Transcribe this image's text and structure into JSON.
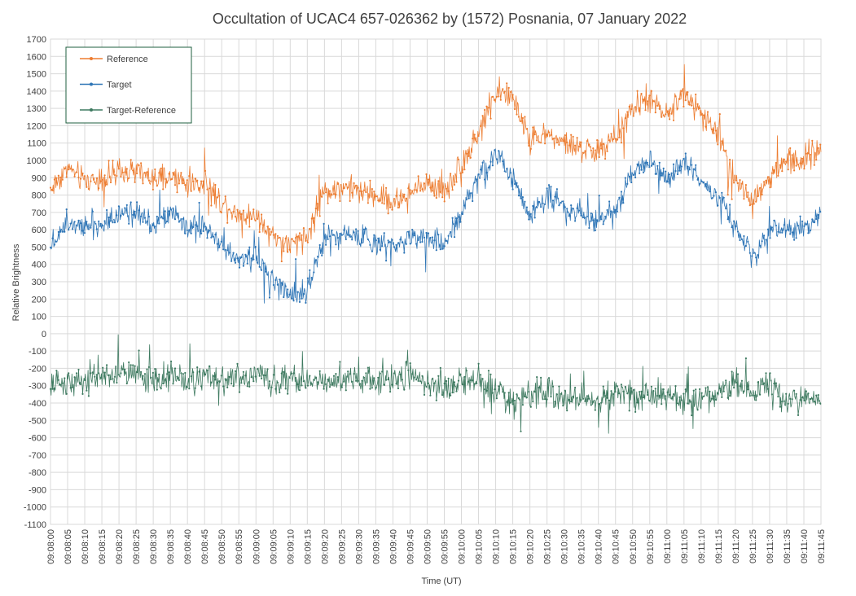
{
  "chart_data": {
    "type": "line",
    "title": "Occultation of UCAC4 657-026362 by (1572) Posnania, 07 January 2022",
    "xlabel": "Time (UT)",
    "ylabel": "Relative Brightness",
    "ylim": [
      -1100,
      1700
    ],
    "yticks": [
      1700,
      1600,
      1500,
      1400,
      1300,
      1200,
      1100,
      1000,
      900,
      800,
      700,
      600,
      500,
      400,
      300,
      200,
      100,
      0,
      -100,
      -200,
      -300,
      -400,
      -500,
      -600,
      -700,
      -800,
      -900,
      -1000,
      -1100
    ],
    "xticks": [
      "09:08:00",
      "09:08:05",
      "09:08:10",
      "09:08:15",
      "09:08:20",
      "09:08:25",
      "09:08:30",
      "09:08:35",
      "09:08:40",
      "09:08:45",
      "09:08:50",
      "09:08:55",
      "09:09:00",
      "09:09:05",
      "09:09:10",
      "09:09:15",
      "09:09:20",
      "09:09:25",
      "09:09:30",
      "09:09:35",
      "09:09:40",
      "09:09:45",
      "09:09:50",
      "09:09:55",
      "09:10:00",
      "09:10:05",
      "09:10:10",
      "09:10:15",
      "09:10:20",
      "09:10:25",
      "09:10:30",
      "09:10:35",
      "09:10:40",
      "09:10:45",
      "09:10:50",
      "09:10:55",
      "09:11:00",
      "09:11:05",
      "09:11:10",
      "09:11:15",
      "09:11:20",
      "09:11:25",
      "09:11:30",
      "09:11:35",
      "09:11:40",
      "09:11:45"
    ],
    "grid": true,
    "legend_position": "top-left",
    "series": [
      {
        "name": "Reference",
        "color": "#ED7D31",
        "time_unit": "seconds after 09:08:00",
        "x": [
          0,
          5,
          10,
          15,
          20,
          25,
          30,
          35,
          40,
          45,
          50,
          55,
          60,
          65,
          70,
          75,
          80,
          85,
          90,
          95,
          100,
          105,
          110,
          115,
          120,
          125,
          130,
          135,
          140,
          145,
          150,
          155,
          160,
          165,
          170,
          175,
          180,
          185,
          190,
          195,
          200,
          205,
          210,
          215,
          220,
          225
        ],
        "values": [
          830,
          960,
          880,
          900,
          920,
          940,
          880,
          900,
          870,
          860,
          760,
          690,
          680,
          570,
          500,
          560,
          820,
          850,
          820,
          800,
          760,
          800,
          880,
          820,
          980,
          1150,
          1400,
          1360,
          1120,
          1150,
          1100,
          1060,
          1060,
          1120,
          1300,
          1350,
          1250,
          1400,
          1260,
          1150,
          900,
          760,
          900,
          1000,
          1000,
          1080
        ]
      },
      {
        "name": "Target",
        "color": "#2E75B6",
        "time_unit": "seconds after 09:08:00",
        "x": [
          0,
          5,
          10,
          15,
          20,
          25,
          30,
          35,
          40,
          45,
          50,
          55,
          60,
          65,
          70,
          75,
          80,
          85,
          90,
          95,
          100,
          105,
          110,
          115,
          120,
          125,
          130,
          135,
          140,
          145,
          150,
          155,
          160,
          165,
          170,
          175,
          180,
          185,
          190,
          195,
          200,
          205,
          210,
          215,
          220,
          225
        ],
        "values": [
          500,
          650,
          640,
          620,
          700,
          720,
          600,
          700,
          600,
          620,
          500,
          430,
          450,
          300,
          230,
          260,
          560,
          580,
          560,
          520,
          520,
          560,
          560,
          500,
          700,
          900,
          1040,
          900,
          680,
          800,
          720,
          700,
          640,
          720,
          940,
          1000,
          880,
          1000,
          860,
          800,
          600,
          440,
          600,
          600,
          600,
          680
        ]
      },
      {
        "name": "Target-Reference",
        "color": "#3E7A60",
        "time_unit": "seconds after 09:08:00",
        "x": [
          0,
          5,
          10,
          15,
          20,
          25,
          30,
          35,
          40,
          45,
          50,
          55,
          60,
          65,
          70,
          75,
          80,
          85,
          90,
          95,
          100,
          105,
          110,
          115,
          120,
          125,
          130,
          135,
          140,
          145,
          150,
          155,
          160,
          165,
          170,
          175,
          180,
          185,
          190,
          195,
          200,
          205,
          210,
          215,
          220,
          225
        ],
        "values": [
          -300,
          -280,
          -260,
          -280,
          -220,
          -230,
          -270,
          -230,
          -280,
          -260,
          -260,
          -260,
          -240,
          -270,
          -250,
          -280,
          -260,
          -270,
          -260,
          -280,
          -260,
          -240,
          -300,
          -320,
          -280,
          -250,
          -340,
          -380,
          -360,
          -340,
          -380,
          -360,
          -400,
          -340,
          -360,
          -360,
          -360,
          -380,
          -380,
          -350,
          -300,
          -320,
          -300,
          -380,
          -380,
          -380
        ]
      }
    ]
  }
}
